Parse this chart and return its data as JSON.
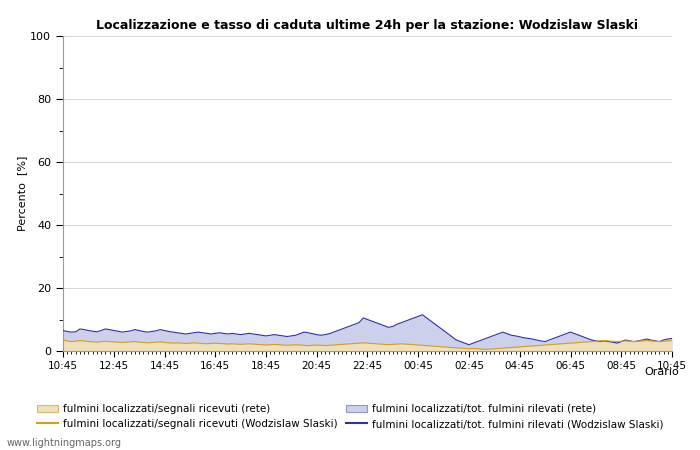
{
  "title": "Localizzazione e tasso di caduta ultime 24h per la stazione: Wodzislaw Slaski",
  "ylabel": "Percento  [%]",
  "xlabel_right": "Orario",
  "yticks": [
    0,
    20,
    40,
    60,
    80,
    100
  ],
  "yticks_minor": [
    10,
    30,
    50,
    70,
    90
  ],
  "ylim": [
    0,
    100
  ],
  "xtick_labels": [
    "10:45",
    "12:45",
    "14:45",
    "16:45",
    "18:45",
    "20:45",
    "22:45",
    "00:45",
    "02:45",
    "04:45",
    "06:45",
    "08:45",
    "10:45"
  ],
  "watermark": "www.lightningmaps.org",
  "fill_rete_color": "#f0e0b8",
  "fill_rete_edge": "#d4b87a",
  "fill_rete2_color": "#cdd0ea",
  "fill_rete2_edge": "#9098c8",
  "line_wodzislaw_color": "#d4a020",
  "line_wodzislaw2_color": "#3030a0",
  "legend_labels": [
    "fulmini localizzati/segnali ricevuti (rete)",
    "fulmini localizzati/segnali ricevuti (Wodzislaw Slaski)",
    "fulmini localizzati/tot. fulmini rilevati (rete)",
    "fulmini localizzati/tot. fulmini rilevati (Wodzislaw Slaski)"
  ],
  "n_points": 145,
  "fill_rete_values": [
    3.5,
    3.2,
    3.0,
    3.1,
    3.3,
    3.2,
    3.0,
    2.9,
    2.8,
    3.0,
    3.1,
    3.0,
    2.9,
    2.8,
    2.7,
    2.8,
    2.9,
    3.0,
    2.8,
    2.7,
    2.6,
    2.7,
    2.8,
    2.9,
    2.7,
    2.6,
    2.5,
    2.6,
    2.5,
    2.4,
    2.5,
    2.6,
    2.5,
    2.4,
    2.3,
    2.4,
    2.5,
    2.4,
    2.3,
    2.2,
    2.3,
    2.2,
    2.1,
    2.2,
    2.3,
    2.2,
    2.1,
    2.0,
    1.9,
    2.0,
    2.1,
    2.0,
    1.9,
    1.8,
    1.9,
    2.0,
    1.9,
    1.8,
    1.7,
    1.8,
    1.9,
    1.8,
    1.7,
    1.8,
    1.9,
    2.0,
    2.1,
    2.2,
    2.3,
    2.4,
    2.5,
    2.6,
    2.5,
    2.4,
    2.3,
    2.2,
    2.1,
    2.0,
    2.1,
    2.2,
    2.3,
    2.2,
    2.1,
    2.0,
    1.9,
    1.8,
    1.7,
    1.6,
    1.5,
    1.4,
    1.3,
    1.2,
    1.1,
    1.0,
    0.9,
    0.8,
    0.7,
    0.8,
    0.7,
    0.6,
    0.5,
    0.6,
    0.7,
    0.8,
    0.9,
    1.0,
    1.1,
    1.2,
    1.3,
    1.4,
    1.5,
    1.6,
    1.7,
    1.8,
    1.9,
    2.0,
    2.1,
    2.2,
    2.3,
    2.4,
    2.5,
    2.6,
    2.7,
    2.8,
    2.9,
    3.0,
    3.1,
    3.2,
    3.3,
    3.2,
    3.1,
    3.0,
    3.1,
    3.2,
    3.1,
    3.0,
    3.1,
    3.2,
    3.3,
    3.2,
    3.1,
    3.0,
    3.1,
    3.2,
    3.3
  ],
  "fill_rete2_values": [
    6.5,
    6.2,
    6.0,
    6.1,
    7.0,
    6.8,
    6.5,
    6.3,
    6.1,
    6.5,
    7.0,
    6.8,
    6.5,
    6.3,
    6.0,
    6.2,
    6.4,
    6.8,
    6.5,
    6.2,
    6.0,
    6.2,
    6.4,
    6.8,
    6.5,
    6.2,
    6.0,
    5.8,
    5.6,
    5.4,
    5.6,
    5.8,
    6.0,
    5.8,
    5.6,
    5.4,
    5.6,
    5.8,
    5.6,
    5.4,
    5.6,
    5.4,
    5.2,
    5.4,
    5.6,
    5.4,
    5.2,
    5.0,
    4.8,
    5.0,
    5.2,
    5.0,
    4.8,
    4.6,
    4.8,
    5.0,
    5.5,
    6.0,
    5.8,
    5.5,
    5.2,
    5.0,
    5.2,
    5.5,
    6.0,
    6.5,
    7.0,
    7.5,
    8.0,
    8.5,
    9.0,
    10.5,
    10.0,
    9.5,
    9.0,
    8.5,
    8.0,
    7.5,
    7.8,
    8.5,
    9.0,
    9.5,
    10.0,
    10.5,
    11.0,
    11.5,
    10.5,
    9.5,
    8.5,
    7.5,
    6.5,
    5.5,
    4.5,
    3.5,
    3.0,
    2.5,
    2.0,
    2.5,
    3.0,
    3.5,
    4.0,
    4.5,
    5.0,
    5.5,
    6.0,
    5.5,
    5.0,
    4.8,
    4.5,
    4.2,
    4.0,
    3.8,
    3.5,
    3.2,
    3.0,
    3.5,
    4.0,
    4.5,
    5.0,
    5.5,
    6.0,
    5.5,
    5.0,
    4.5,
    4.0,
    3.5,
    3.2,
    3.0,
    3.2,
    3.0,
    2.8,
    2.5,
    3.0,
    3.5,
    3.2,
    3.0,
    3.2,
    3.5,
    3.8,
    3.5,
    3.2,
    3.0,
    3.5,
    3.8,
    4.0
  ]
}
